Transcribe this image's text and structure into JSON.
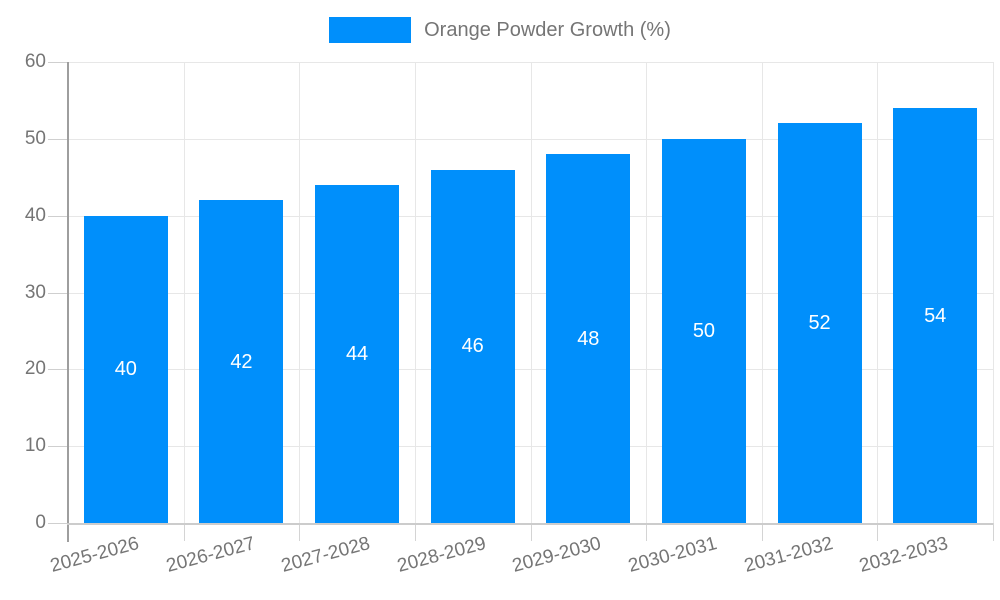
{
  "legend": {
    "label": "Orange Powder Growth (%)"
  },
  "colors": {
    "bar": "#008FFB",
    "data_label": "#ffffff",
    "axis_text": "#757575",
    "grid": "#e7e7e7",
    "y_axis_line": "#9e9e9e",
    "x_axis_line": "#cccccc",
    "tick": "#d4d4d4",
    "background": "#ffffff"
  },
  "chart_data": {
    "type": "bar",
    "title": "Orange Powder Growth (%)",
    "categories": [
      "2025-2026",
      "2026-2027",
      "2027-2028",
      "2028-2029",
      "2029-2030",
      "2030-2031",
      "2031-2032",
      "2032-2033"
    ],
    "series": [
      {
        "name": "Orange Powder Growth (%)",
        "values": [
          40,
          42,
          44,
          46,
          48,
          50,
          52,
          54
        ]
      }
    ],
    "xlabel": "",
    "ylabel": "",
    "ylim": [
      0,
      60
    ],
    "yticks": [
      0,
      10,
      20,
      30,
      40,
      50,
      60
    ],
    "grid": "on",
    "legend_position": "top",
    "data_labels": "inside-center"
  }
}
